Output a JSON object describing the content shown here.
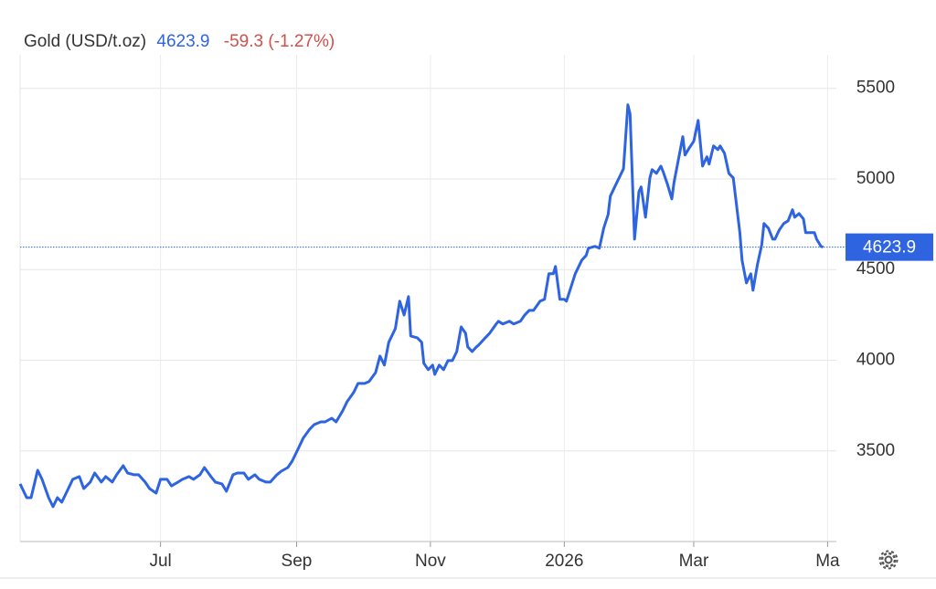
{
  "chart_data": {
    "type": "line",
    "title": "Gold (USD/t.oz)",
    "change_label": "-59.3 (-1.27%)",
    "x": [
      0,
      3,
      5,
      8,
      10,
      13,
      15,
      17,
      19,
      22,
      24,
      27,
      29,
      32,
      34,
      37,
      39,
      42,
      44,
      47,
      49,
      52,
      54,
      57,
      59,
      62,
      64,
      67,
      69,
      72,
      74,
      77,
      79,
      82,
      84,
      87,
      89,
      92,
      94,
      97,
      99,
      102,
      104,
      107,
      109,
      112,
      114,
      117,
      119,
      122,
      124,
      127,
      129,
      132,
      134,
      137,
      139,
      142,
      144,
      147,
      149,
      152,
      154,
      157,
      159,
      162,
      164,
      166,
      168,
      171,
      173,
      175,
      177,
      178,
      181,
      183,
      184,
      186,
      188,
      189,
      191,
      193,
      195,
      197,
      199,
      201,
      203,
      204,
      206,
      208,
      209,
      212,
      214,
      217,
      218,
      220,
      223,
      225,
      228,
      230,
      232,
      234,
      237,
      239,
      241,
      243,
      244,
      246,
      248,
      249,
      251,
      253,
      256,
      258,
      259,
      262,
      264,
      266,
      268,
      269,
      272,
      273,
      275,
      277,
      278,
      280,
      282,
      283,
      285,
      287,
      288,
      290,
      292,
      293,
      295,
      297,
      298,
      300,
      302,
      303,
      305,
      307,
      309,
      311,
      313,
      314,
      316,
      318,
      319,
      321,
      323,
      325,
      328,
      329,
      331,
      333,
      334,
      336,
      338,
      339,
      341,
      343,
      344,
      346,
      348,
      350,
      352,
      353,
      355,
      357,
      358,
      360,
      362,
      363,
      365,
      366
    ],
    "series": [
      {
        "name": "Gold",
        "color": "#2f64e0",
        "values": [
          3318,
          3242,
          3242,
          3393,
          3343,
          3242,
          3192,
          3242,
          3217,
          3292,
          3343,
          3358,
          3292,
          3328,
          3378,
          3328,
          3358,
          3328,
          3368,
          3418,
          3378,
          3368,
          3368,
          3328,
          3292,
          3267,
          3343,
          3343,
          3307,
          3328,
          3343,
          3358,
          3343,
          3368,
          3408,
          3358,
          3328,
          3318,
          3277,
          3368,
          3378,
          3378,
          3343,
          3368,
          3343,
          3328,
          3328,
          3368,
          3388,
          3408,
          3444,
          3519,
          3570,
          3620,
          3645,
          3660,
          3660,
          3680,
          3660,
          3721,
          3771,
          3822,
          3872,
          3872,
          3882,
          3932,
          4023,
          3973,
          4099,
          4174,
          4326,
          4250,
          4351,
          4134,
          4124,
          4099,
          3983,
          3948,
          3973,
          3922,
          3973,
          3948,
          3998,
          3998,
          4048,
          4184,
          4149,
          4074,
          4048,
          4074,
          4084,
          4124,
          4149,
          4200,
          4215,
          4200,
          4215,
          4200,
          4215,
          4250,
          4275,
          4275,
          4326,
          4336,
          4477,
          4477,
          4517,
          4336,
          4336,
          4326,
          4401,
          4477,
          4552,
          4578,
          4618,
          4628,
          4618,
          4729,
          4804,
          4905,
          4981,
          5006,
          5056,
          5409,
          5359,
          4668,
          4930,
          4956,
          4789,
          5006,
          5051,
          5031,
          5071,
          5041,
          4971,
          4890,
          4981,
          5107,
          5233,
          5132,
          5172,
          5208,
          5323,
          5071,
          5122,
          5082,
          5182,
          5162,
          5182,
          5142,
          5031,
          5006,
          4704,
          4552,
          4426,
          4477,
          4386,
          4527,
          4638,
          4754,
          4729,
          4668,
          4668,
          4719,
          4754,
          4769,
          4830,
          4789,
          4809,
          4779,
          4704,
          4704,
          4704,
          4668,
          4628,
          4623.9
        ]
      }
    ],
    "xlim": [
      0,
      372
    ],
    "xticks": [
      {
        "value": 64,
        "label": "Jul"
      },
      {
        "value": 126,
        "label": "Sep"
      },
      {
        "value": 187,
        "label": "Nov"
      },
      {
        "value": 248,
        "label": "2026"
      },
      {
        "value": 307,
        "label": "Mar"
      },
      {
        "value": 368,
        "label": "Ma"
      }
    ],
    "ylim": [
      3000,
      5700
    ],
    "yticks": [
      3500,
      4000,
      4500,
      5000,
      5500
    ],
    "change_color": "#d0504a",
    "grid": true
  }
}
